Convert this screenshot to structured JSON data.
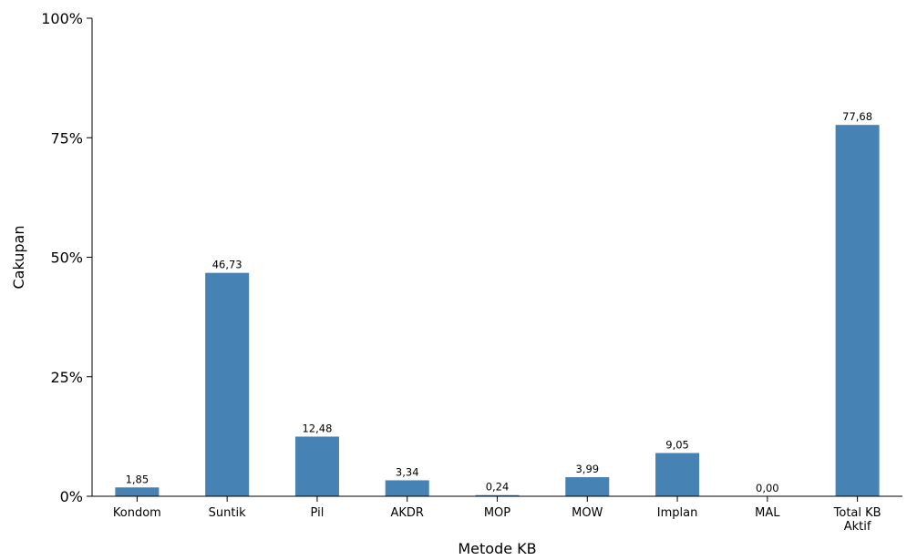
{
  "chart_data": {
    "type": "bar",
    "categories": [
      "Kondom",
      "Suntik",
      "Pil",
      "AKDR",
      "MOP",
      "MOW",
      "Implan",
      "MAL",
      "Total KB Aktif"
    ],
    "values": [
      1.85,
      46.73,
      12.48,
      3.34,
      0.24,
      3.99,
      9.05,
      0.0,
      77.68
    ],
    "data_labels": [
      "1,85",
      "46,73",
      "12,48",
      "3,34",
      "0,24",
      "3,99",
      "9,05",
      "0,00",
      "77,68"
    ],
    "title": "",
    "xlabel": "Metode KB",
    "ylabel": "Cakupan",
    "ylim": [
      0,
      100
    ],
    "yticks": [
      0,
      25,
      50,
      75,
      100
    ],
    "ytick_labels": [
      "0%",
      "25%",
      "50%",
      "75%",
      "100%"
    ],
    "bar_color": "#4682b4",
    "grid": false,
    "legend": "none"
  }
}
